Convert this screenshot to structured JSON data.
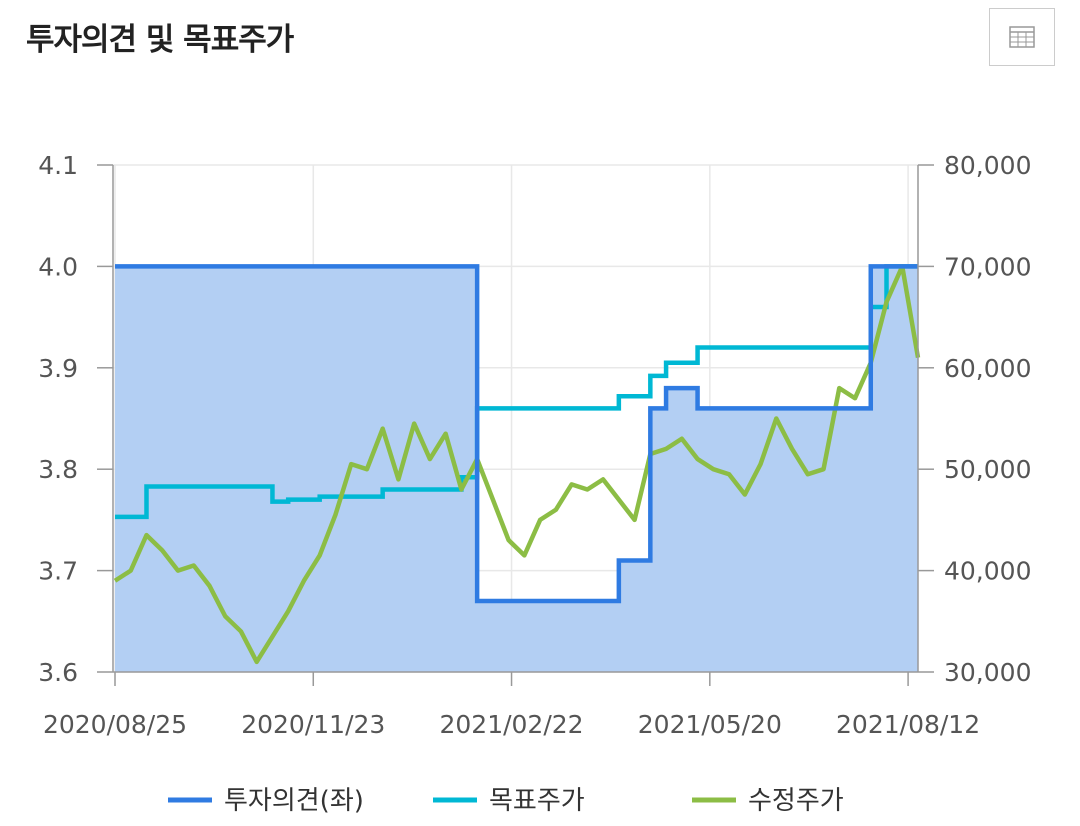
{
  "header": {
    "title": "투자의견 및 목표주가",
    "table_icon": "table-grid-icon"
  },
  "colors": {
    "opinion": "#2f7be2",
    "target": "#00b8d4",
    "price": "#8cbd45",
    "area": "#b3cff3"
  },
  "chart_data": {
    "type": "line",
    "title": "투자의견 및 목표주가",
    "x_ticks": [
      "2020/08/25",
      "2020/11/23",
      "2021/02/22",
      "2021/05/20",
      "2021/08/12"
    ],
    "y_left": {
      "min": 3.6,
      "max": 4.1,
      "ticks": [
        "4.1",
        "4.0",
        "3.9",
        "3.8",
        "3.7",
        "3.6"
      ]
    },
    "y_right": {
      "min": 30000,
      "max": 80000,
      "ticks": [
        "80,000",
        "70,000",
        "60,000",
        "50,000",
        "40,000",
        "30,000"
      ]
    },
    "grid": true,
    "legend_position": "bottom",
    "x": [
      "2020/08/25",
      "2020/09/01",
      "2020/09/08",
      "2020/09/15",
      "2020/09/22",
      "2020/09/29",
      "2020/10/06",
      "2020/10/13",
      "2020/10/20",
      "2020/10/27",
      "2020/11/03",
      "2020/11/10",
      "2020/11/17",
      "2020/11/24",
      "2020/12/01",
      "2020/12/08",
      "2020/12/15",
      "2020/12/22",
      "2020/12/29",
      "2021/01/05",
      "2021/01/12",
      "2021/01/19",
      "2021/01/26",
      "2021/02/02",
      "2021/02/09",
      "2021/02/16",
      "2021/02/23",
      "2021/03/02",
      "2021/03/09",
      "2021/03/16",
      "2021/03/23",
      "2021/03/30",
      "2021/04/06",
      "2021/04/13",
      "2021/04/20",
      "2021/04/27",
      "2021/05/04",
      "2021/05/11",
      "2021/05/18",
      "2021/05/25",
      "2021/06/01",
      "2021/06/08",
      "2021/06/15",
      "2021/06/22",
      "2021/06/29",
      "2021/07/06",
      "2021/07/13",
      "2021/07/20",
      "2021/07/27",
      "2021/08/03",
      "2021/08/10",
      "2021/08/17"
    ],
    "series": [
      {
        "name": "투자의견(좌)",
        "axis": "left",
        "values": [
          4.0,
          4.0,
          4.0,
          4.0,
          4.0,
          4.0,
          4.0,
          4.0,
          4.0,
          4.0,
          4.0,
          4.0,
          4.0,
          4.0,
          4.0,
          4.0,
          4.0,
          4.0,
          4.0,
          4.0,
          4.0,
          4.0,
          4.0,
          3.67,
          3.67,
          3.67,
          3.67,
          3.67,
          3.67,
          3.67,
          3.67,
          3.67,
          3.71,
          3.71,
          3.86,
          3.88,
          3.88,
          3.86,
          3.86,
          3.86,
          3.86,
          3.86,
          3.86,
          3.86,
          3.86,
          3.86,
          3.86,
          3.86,
          4.0,
          4.0,
          4.0,
          4.0
        ]
      },
      {
        "name": "목표주가",
        "axis": "right",
        "values": [
          45300,
          45300,
          48300,
          48300,
          48300,
          48300,
          48300,
          48300,
          48300,
          48300,
          46800,
          47000,
          47000,
          47300,
          47300,
          47300,
          47300,
          48000,
          48000,
          48000,
          48000,
          48000,
          49200,
          56000,
          56000,
          56000,
          56000,
          56000,
          56000,
          56000,
          56000,
          56000,
          57200,
          57200,
          59200,
          60500,
          60500,
          62000,
          62000,
          62000,
          62000,
          62000,
          62000,
          62000,
          62000,
          62000,
          62000,
          62000,
          66000,
          70000,
          70000,
          70000
        ]
      },
      {
        "name": "수정주가",
        "axis": "right",
        "values": [
          39000,
          40000,
          43500,
          42000,
          40000,
          40500,
          38500,
          35500,
          34000,
          31000,
          33500,
          36000,
          39000,
          41500,
          45500,
          50500,
          50000,
          54000,
          49000,
          54500,
          51000,
          53500,
          48000,
          51000,
          47000,
          43000,
          41500,
          45000,
          46000,
          48500,
          48000,
          49000,
          47000,
          45000,
          51500,
          52000,
          53000,
          51000,
          50000,
          49500,
          47500,
          50500,
          55000,
          52000,
          49500,
          50000,
          58000,
          57000,
          60500,
          66500,
          70000,
          61000
        ]
      }
    ]
  },
  "legend": [
    {
      "label": "투자의견(좌)",
      "color": "#2f7be2"
    },
    {
      "label": "목표주가",
      "color": "#00b8d4"
    },
    {
      "label": "수정주가",
      "color": "#8cbd45"
    }
  ]
}
